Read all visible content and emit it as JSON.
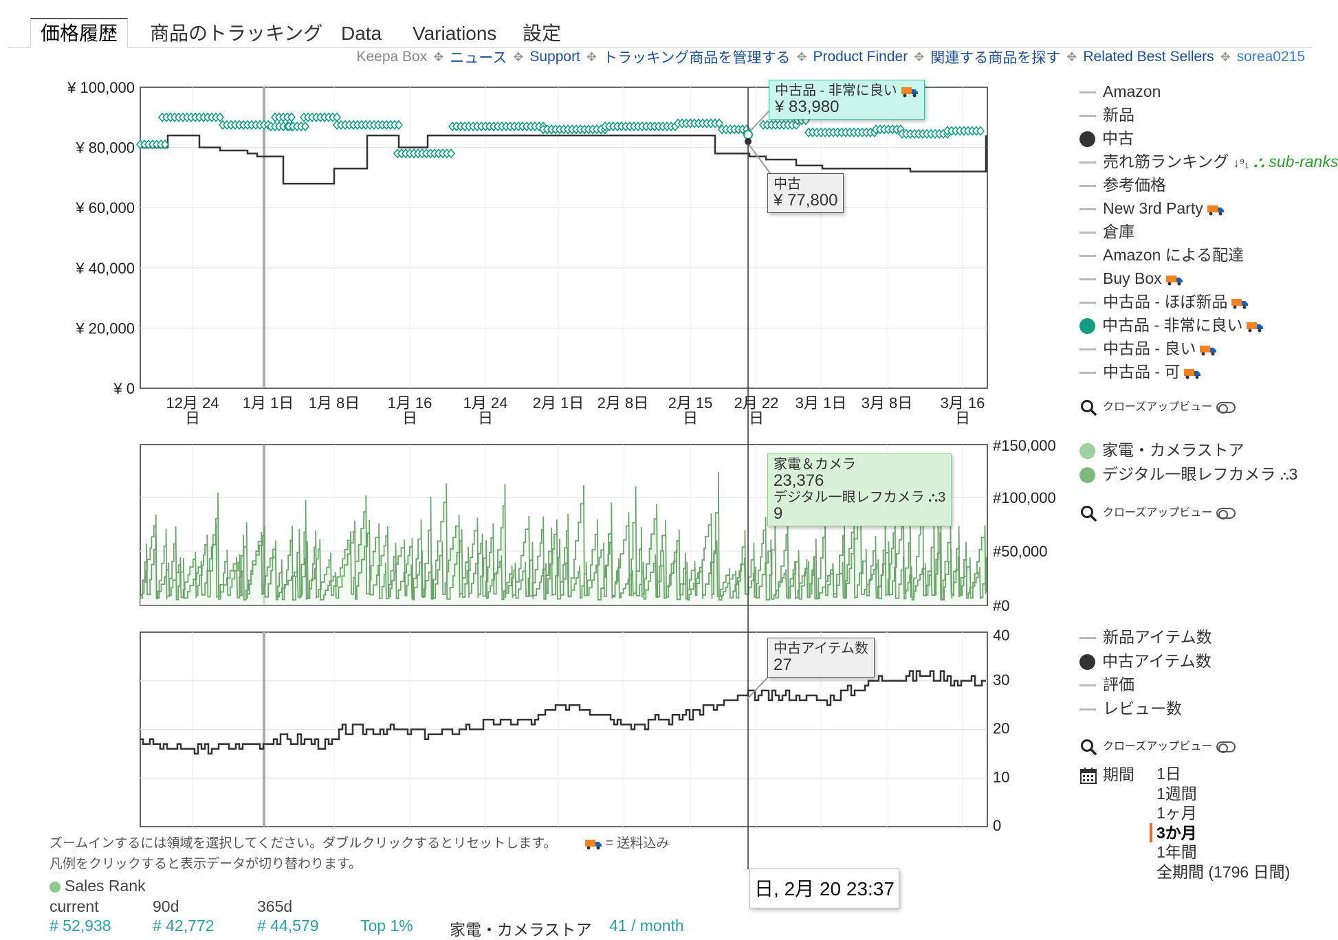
{
  "tabs": [
    "価格履歴",
    "商品のトラッキング",
    "Data",
    "Variations",
    "設定"
  ],
  "links": {
    "keepa_box": "Keepa Box",
    "items": [
      "ニュース",
      "Support",
      "トラッキング商品を管理する",
      "Product Finder",
      "関連する商品を探す",
      "Related Best Sellers"
    ],
    "user": "sorea0215"
  },
  "price_chart": {
    "y_ticks": [
      "¥ 100,000",
      "¥ 80,000",
      "¥ 60,000",
      "¥ 40,000",
      "¥ 20,000",
      "¥ 0"
    ],
    "x_ticks": [
      {
        "l1": "12月 24",
        "l2": "日"
      },
      {
        "l1": "1月 1日",
        "l2": ""
      },
      {
        "l1": "1月 8日",
        "l2": ""
      },
      {
        "l1": "1月 16",
        "l2": "日"
      },
      {
        "l1": "1月 24",
        "l2": "日"
      },
      {
        "l1": "2月 1日",
        "l2": ""
      },
      {
        "l1": "2月 8日",
        "l2": ""
      },
      {
        "l1": "2月 15",
        "l2": "日"
      },
      {
        "l1": "2月 22",
        "l2": "日"
      },
      {
        "l1": "3月 1日",
        "l2": ""
      },
      {
        "l1": "3月 8日",
        "l2": ""
      },
      {
        "l1": "3月 16",
        "l2": "日"
      }
    ]
  },
  "rank_chart": {
    "y_ticks": [
      "#150,000",
      "#100,000",
      "#50,000",
      "#0"
    ]
  },
  "count_chart": {
    "y_ticks": [
      "40",
      "30",
      "20",
      "10",
      "0"
    ]
  },
  "tooltips": {
    "very_good": {
      "label": "中古品 - 非常に良い",
      "value": "¥ 83,980"
    },
    "used": {
      "label": "中古",
      "value": "¥ 77,800"
    },
    "rank": {
      "cat1": "家電＆カメラ",
      "val1": "23,376",
      "cat2": "デジタル一眼レフカメラ",
      "cat2_suffix": "3",
      "val2": "9"
    },
    "count": {
      "label": "中古アイテム数",
      "value": "27"
    },
    "date": "日, 2月 20 23:37"
  },
  "legend_price": [
    {
      "label": "Amazon",
      "marker": "dash"
    },
    {
      "label": "新品",
      "marker": "dash"
    },
    {
      "label": "中古",
      "marker": "dot-dark"
    },
    {
      "label": "売れ筋ランキング",
      "marker": "dash",
      "extra": "sub-ranks"
    },
    {
      "label": "参考価格",
      "marker": "dash"
    },
    {
      "label": "New 3rd Party",
      "marker": "dash",
      "truck": true
    },
    {
      "label": "倉庫",
      "marker": "dash"
    },
    {
      "label": "Amazon による配達",
      "marker": "dash"
    },
    {
      "label": "Buy Box",
      "marker": "dash",
      "truck": true
    },
    {
      "label": "中古品 - ほぼ新品",
      "marker": "dash",
      "truck": true
    },
    {
      "label": "中古品 - 非常に良い",
      "marker": "dot-teal",
      "truck": true
    },
    {
      "label": "中古品 - 良い",
      "marker": "dash",
      "truck": true
    },
    {
      "label": "中古品 - 可",
      "marker": "dash",
      "truck": true
    }
  ],
  "legend_rank": [
    {
      "label": "家電・カメラストア",
      "marker": "dot-lightgreen"
    },
    {
      "label": "デジタル一眼レフカメラ",
      "marker": "dot-green",
      "suffix": "3"
    }
  ],
  "legend_count": [
    {
      "label": "新品アイテム数",
      "marker": "dash"
    },
    {
      "label": "中古アイテム数",
      "marker": "dot-dark"
    },
    {
      "label": "評価",
      "marker": "dash"
    },
    {
      "label": "レビュー数",
      "marker": "dash"
    }
  ],
  "closeup_label": "クローズアップビュー",
  "period": {
    "label": "期間",
    "options": [
      "1日",
      "1週間",
      "1ヶ月",
      "3か月",
      "1年間",
      "全期間 (1796 日間)"
    ],
    "selected": "3か月"
  },
  "notes": {
    "zoom_hint": "ズームインするには領域を選択してください。ダブルクリックするとリセットします。",
    "shipping": "= 送料込み",
    "legend_hint": "凡例をクリックすると表示データが切り替わります。"
  },
  "sales_rank": {
    "title": "Sales Rank",
    "cols": [
      "current",
      "90d",
      "365d"
    ],
    "row": [
      "# 52,938",
      "# 42,772",
      "# 44,579",
      "Top 1%",
      "家電・カメラストア",
      "41 / month"
    ]
  },
  "colors": {
    "teal": "#129e82",
    "dark": "#333333",
    "rank_green": "#6aa56a",
    "rank_fill": "#e3f3e3",
    "accent": "#f26a21",
    "link": "#1a4d9c"
  }
}
